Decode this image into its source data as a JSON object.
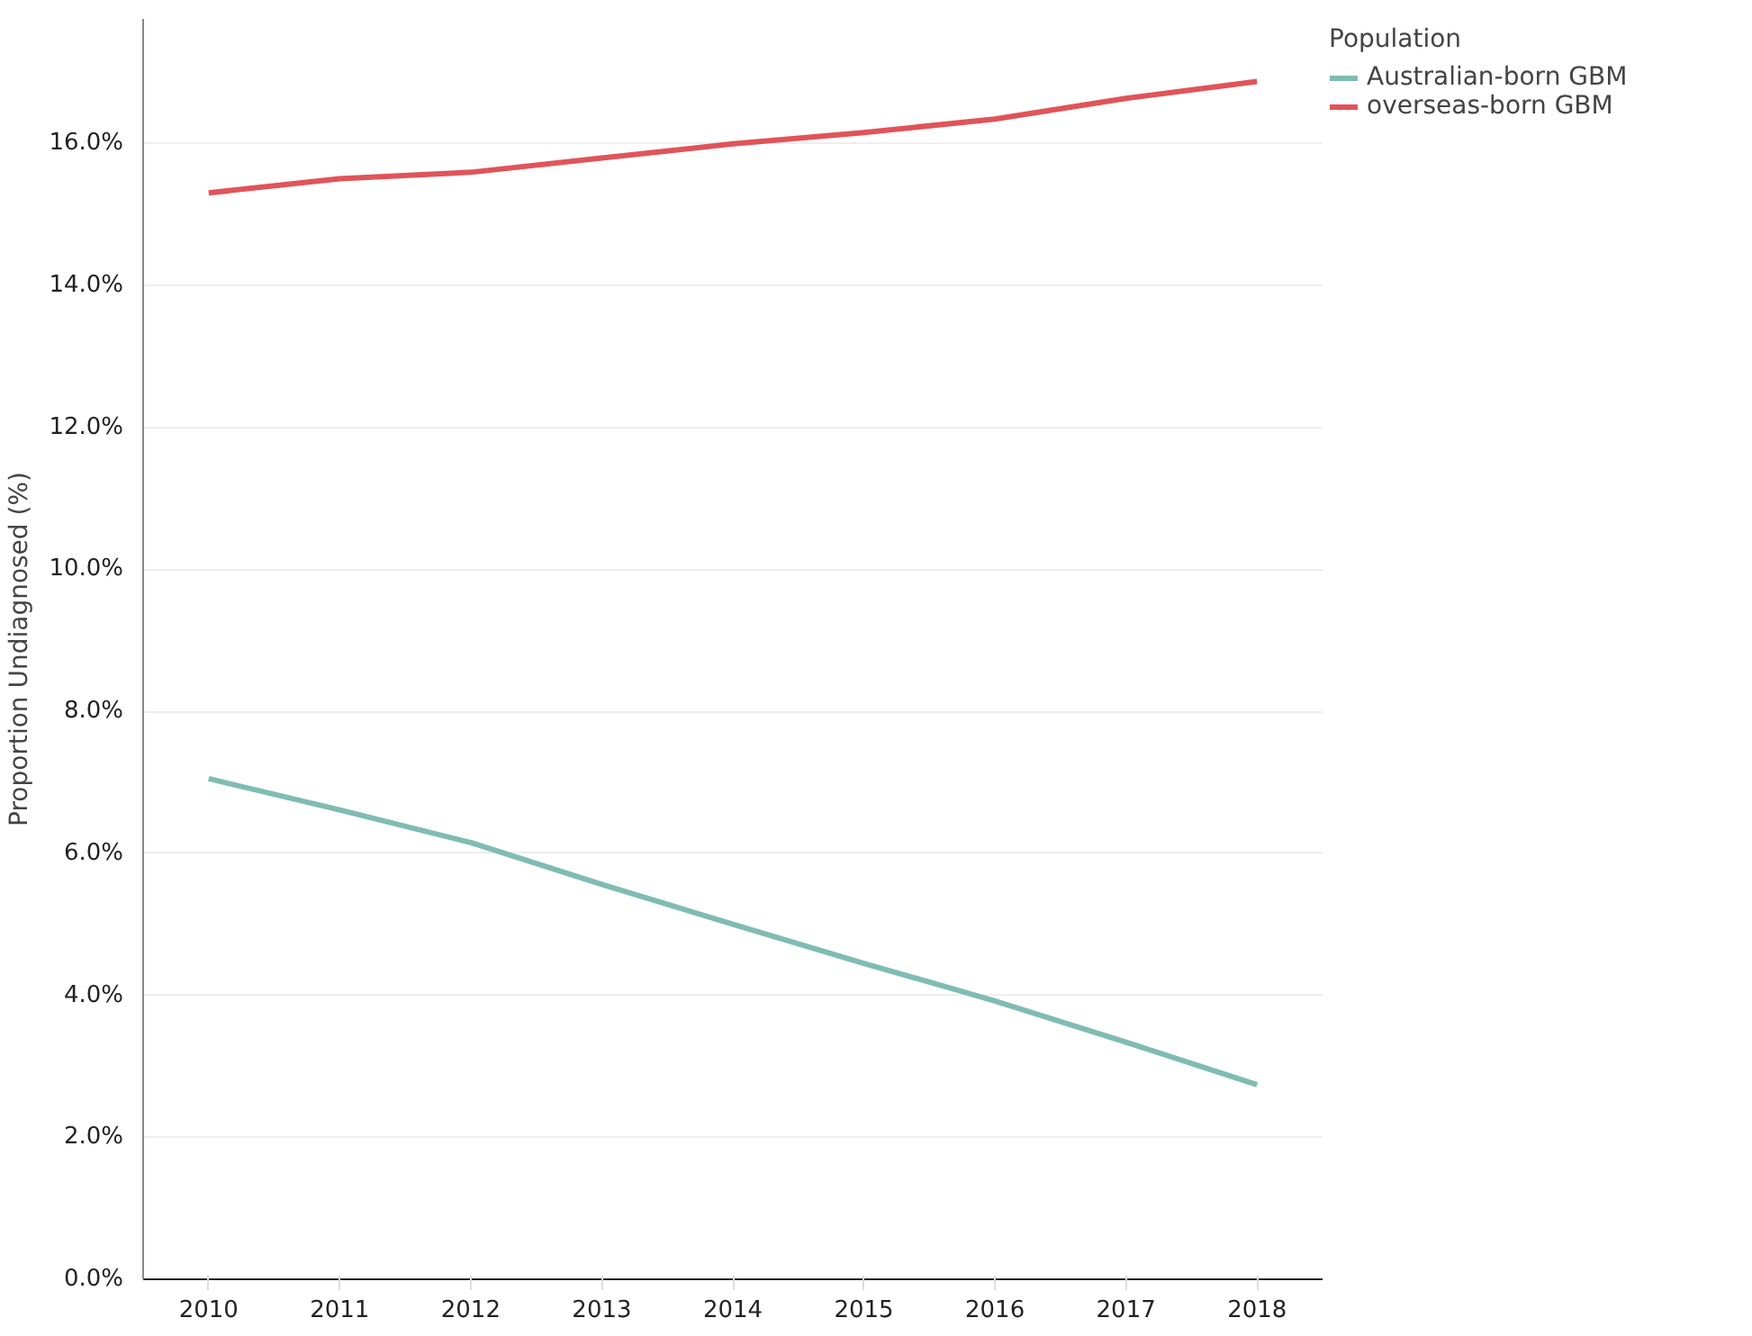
{
  "chart_data": {
    "type": "line",
    "ylabel": "Proportion Undiagnosed (%)",
    "legend_title": "Population",
    "x": [
      2010,
      2011,
      2012,
      2013,
      2014,
      2015,
      2016,
      2017,
      2018
    ],
    "series": [
      {
        "name": "Australian-born GBM",
        "color": "#7fbcb2",
        "values": [
          7.05,
          6.61,
          6.15,
          5.56,
          5.0,
          4.45,
          3.92,
          3.34,
          2.74
        ]
      },
      {
        "name": "overseas-born GBM",
        "color": "#e05459",
        "values": [
          15.3,
          15.5,
          15.59,
          15.79,
          15.99,
          16.15,
          16.34,
          16.63,
          16.87
        ]
      }
    ],
    "xlim": [
      2009.5,
      2018.5
    ],
    "xticks": [
      2010,
      2011,
      2012,
      2013,
      2014,
      2015,
      2016,
      2017,
      2018
    ],
    "ylim": [
      0,
      17.75
    ],
    "yticks": [
      {
        "value": 0,
        "label": "0.0%"
      },
      {
        "value": 2,
        "label": "2.0%"
      },
      {
        "value": 4,
        "label": "4.0%"
      },
      {
        "value": 6,
        "label": "6.0%"
      },
      {
        "value": 8,
        "label": "8.0%"
      },
      {
        "value": 10,
        "label": "10.0%"
      },
      {
        "value": 12,
        "label": "12.0%"
      },
      {
        "value": 14,
        "label": "14.0%"
      },
      {
        "value": 16,
        "label": "16.0%"
      }
    ],
    "grid": "y",
    "legend": "top right",
    "line_style": "solid"
  }
}
